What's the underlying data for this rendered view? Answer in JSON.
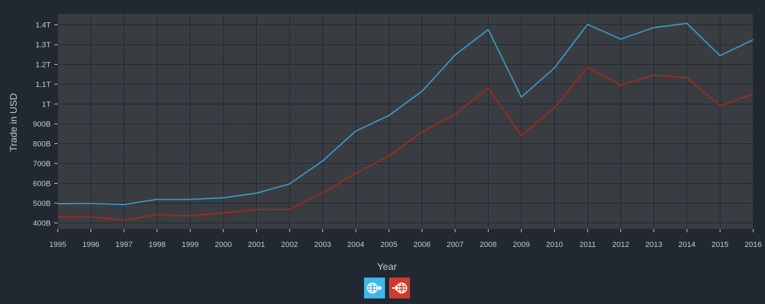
{
  "chart_data": {
    "type": "line",
    "ylabel": "Trade in USD",
    "xlabel": "Year",
    "x": [
      1995,
      1996,
      1997,
      1998,
      1999,
      2000,
      2001,
      2002,
      2003,
      2004,
      2005,
      2006,
      2007,
      2008,
      2009,
      2010,
      2011,
      2012,
      2013,
      2014,
      2015,
      2016
    ],
    "xlim": [
      1995,
      2016
    ],
    "ylim": [
      370000000000,
      1455000000000
    ],
    "y_ticks": [
      {
        "value": 400000000000,
        "label": "400B"
      },
      {
        "value": 500000000000,
        "label": "500B"
      },
      {
        "value": 600000000000,
        "label": "600B"
      },
      {
        "value": 700000000000,
        "label": "700B"
      },
      {
        "value": 800000000000,
        "label": "800B"
      },
      {
        "value": 900000000000,
        "label": "900B"
      },
      {
        "value": 1000000000000,
        "label": "1T"
      },
      {
        "value": 1100000000000,
        "label": "1.1T"
      },
      {
        "value": 1200000000000,
        "label": "1.2T"
      },
      {
        "value": 1300000000000,
        "label": "1.3T"
      },
      {
        "value": 1400000000000,
        "label": "1.4T"
      }
    ],
    "grid": true,
    "legend_position": "bottom-center",
    "series": [
      {
        "color": "#3a9bc7",
        "values": [
          497000000000,
          498000000000,
          493000000000,
          519000000000,
          519000000000,
          527000000000,
          550000000000,
          597000000000,
          713000000000,
          864000000000,
          942000000000,
          1065000000000,
          1248000000000,
          1376000000000,
          1035000000000,
          1183000000000,
          1402000000000,
          1328000000000,
          1386000000000,
          1407000000000,
          1244000000000,
          1325000000000
        ]
      },
      {
        "color": "#a8271c",
        "values": [
          431000000000,
          430000000000,
          414000000000,
          442000000000,
          436000000000,
          450000000000,
          467000000000,
          469000000000,
          551000000000,
          651000000000,
          737000000000,
          859000000000,
          949000000000,
          1080000000000,
          842000000000,
          982000000000,
          1185000000000,
          1095000000000,
          1146000000000,
          1133000000000,
          991000000000,
          1051000000000
        ]
      }
    ]
  },
  "legend": [
    {
      "icon": "globe-export-icon",
      "color": "#3fb8e8"
    },
    {
      "icon": "globe-import-icon",
      "color": "#d03a2c"
    }
  ],
  "colors": {
    "background": "#222831",
    "plot_background": "#393d42",
    "grid": "#222831"
  }
}
